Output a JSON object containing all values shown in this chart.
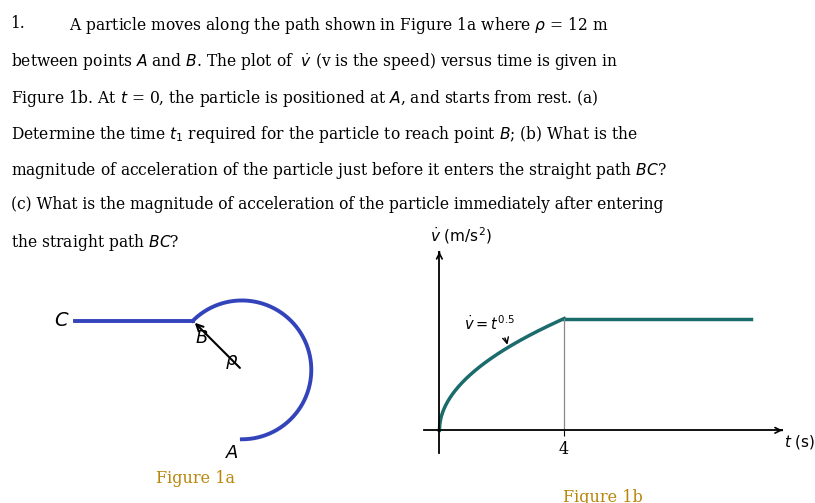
{
  "bg_color": "#ffffff",
  "text_color": "#000000",
  "blue_color": "#3344bb",
  "teal_color": "#1a6b6b",
  "figure_label_color": "#b8860b",
  "fig1a_label": "Figure 1a",
  "fig1b_label": "Figure 1b",
  "t_transition": 4.0,
  "t_max": 10.0,
  "line1": "1.           A particle moves along the path shown in Figure 1a where ρ = 12 m",
  "line2": "between points A and B. The plot of  ṻ (v is the speed) versus time is given in",
  "line3": "Figure 1b. At t = 0, the particle is positioned at A, and starts from rest. (a)",
  "line4": "Determine the time t₁ required for the particle to reach point B; (b) What is the",
  "line5": "magnitude of acceleration of the particle just before it enters the straight path BC?",
  "line6": "(c) What is the magnitude of acceleration of the particle immediately after entering",
  "line7": "the straight path BC?"
}
